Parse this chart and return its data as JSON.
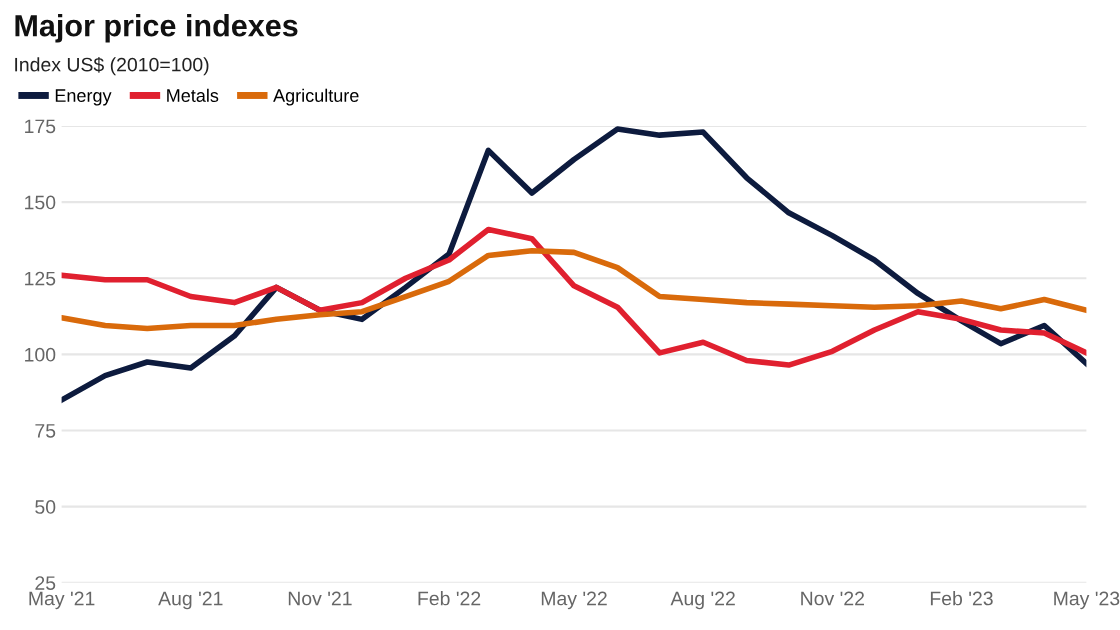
{
  "chart_data": {
    "type": "line",
    "title": "Major price indexes",
    "subtitle": "Index US$ (2010=100)",
    "x": [
      "2021-05",
      "2021-06",
      "2021-07",
      "2021-08",
      "2021-09",
      "2021-10",
      "2021-11",
      "2021-12",
      "2022-01",
      "2022-02",
      "2022-03",
      "2022-04",
      "2022-05",
      "2022-06",
      "2022-07",
      "2022-08",
      "2022-09",
      "2022-10",
      "2022-11",
      "2022-12",
      "2023-01",
      "2023-02",
      "2023-03",
      "2023-04",
      "2023-05"
    ],
    "series": [
      {
        "name": "Energy",
        "color": "#0d1b3e",
        "values": [
          85,
          93,
          97.5,
          95.5,
          106,
          122,
          114.5,
          111.5,
          122,
          133,
          167,
          153,
          164,
          174,
          172,
          173,
          158,
          146.5,
          139,
          131,
          120,
          111,
          103.5,
          109.5,
          97
        ]
      },
      {
        "name": "Metals",
        "color": "#e0202f",
        "values": [
          126,
          124.5,
          124.5,
          119,
          117,
          122,
          114.5,
          117,
          125,
          131,
          141,
          138,
          122.5,
          115.5,
          100.5,
          104,
          98,
          96.5,
          101,
          108,
          114,
          111.5,
          108,
          107,
          100.5
        ]
      },
      {
        "name": "Agriculture",
        "color": "#d96a0b",
        "values": [
          112,
          109.5,
          108.5,
          109.5,
          109.5,
          111.5,
          113,
          114,
          119,
          124,
          132.5,
          134,
          133.5,
          128.5,
          119,
          118,
          117,
          116.5,
          116,
          115.5,
          116,
          117.5,
          115,
          118,
          114.5
        ]
      }
    ],
    "xlim": [
      "2021-05",
      "2023-05"
    ],
    "xticks": [
      {
        "value": "2021-05",
        "label": "May '21"
      },
      {
        "value": "2021-08",
        "label": "Aug '21"
      },
      {
        "value": "2021-11",
        "label": "Nov '21"
      },
      {
        "value": "2022-02",
        "label": "Feb '22"
      },
      {
        "value": "2022-05",
        "label": "May '22"
      },
      {
        "value": "2022-08",
        "label": "Aug '22"
      },
      {
        "value": "2022-11",
        "label": "Nov '22"
      },
      {
        "value": "2023-02",
        "label": "Feb '23"
      },
      {
        "value": "2023-05",
        "label": "May '23"
      }
    ],
    "ylim": [
      25,
      175
    ],
    "yticks": [
      25,
      50,
      75,
      100,
      125,
      150,
      175
    ],
    "grid": "y",
    "legend": "top left",
    "marker": "none",
    "line_style": "solid"
  }
}
